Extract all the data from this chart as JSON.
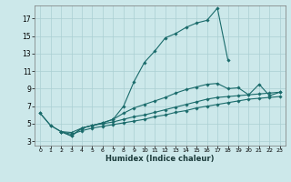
{
  "xlabel": "Humidex (Indice chaleur)",
  "bg_color": "#cce8ea",
  "grid_color": "#aacfd3",
  "line_color": "#1a6b6b",
  "xlim": [
    -0.5,
    23.5
  ],
  "ylim": [
    2.5,
    18.5
  ],
  "yticks": [
    3,
    5,
    7,
    9,
    11,
    13,
    15,
    17
  ],
  "xticks": [
    0,
    1,
    2,
    3,
    4,
    5,
    6,
    7,
    8,
    9,
    10,
    11,
    12,
    13,
    14,
    15,
    16,
    17,
    18,
    19,
    20,
    21,
    22,
    23
  ],
  "series": [
    {
      "x": [
        0,
        1,
        2,
        3,
        4,
        5,
        6,
        7,
        8,
        9,
        10,
        11,
        12,
        13,
        14,
        15,
        16,
        17,
        18
      ],
      "y": [
        6.2,
        4.8,
        4.1,
        3.6,
        4.5,
        4.8,
        5.1,
        5.5,
        7.0,
        9.8,
        12.0,
        13.3,
        14.8,
        15.3,
        16.0,
        16.5,
        16.8,
        18.2,
        12.3
      ]
    },
    {
      "x": [
        0,
        1,
        2,
        3,
        4,
        5,
        6,
        7,
        8,
        9,
        10,
        11,
        12,
        13,
        14,
        15,
        16,
        17,
        18,
        19,
        20,
        21,
        22,
        23
      ],
      "y": [
        6.2,
        4.8,
        4.1,
        3.6,
        4.5,
        4.8,
        5.1,
        5.5,
        6.2,
        6.8,
        7.2,
        7.6,
        8.0,
        8.5,
        8.9,
        9.2,
        9.5,
        9.6,
        9.0,
        9.1,
        8.3,
        9.5,
        8.2,
        8.6
      ]
    },
    {
      "x": [
        2,
        3,
        4,
        5,
        6,
        7,
        8,
        9,
        10,
        11,
        12,
        13,
        14,
        15,
        16,
        17,
        18,
        19,
        20,
        21,
        22,
        23
      ],
      "y": [
        4.1,
        4.0,
        4.5,
        4.8,
        5.0,
        5.2,
        5.5,
        5.8,
        6.0,
        6.3,
        6.6,
        6.9,
        7.2,
        7.5,
        7.8,
        8.0,
        8.1,
        8.2,
        8.3,
        8.4,
        8.5,
        8.6
      ]
    },
    {
      "x": [
        2,
        3,
        4,
        5,
        6,
        7,
        8,
        9,
        10,
        11,
        12,
        13,
        14,
        15,
        16,
        17,
        18,
        19,
        20,
        21,
        22,
        23
      ],
      "y": [
        4.1,
        3.8,
        4.2,
        4.5,
        4.7,
        4.9,
        5.1,
        5.3,
        5.5,
        5.8,
        6.0,
        6.3,
        6.5,
        6.8,
        7.0,
        7.2,
        7.4,
        7.6,
        7.8,
        7.9,
        8.0,
        8.1
      ]
    }
  ]
}
